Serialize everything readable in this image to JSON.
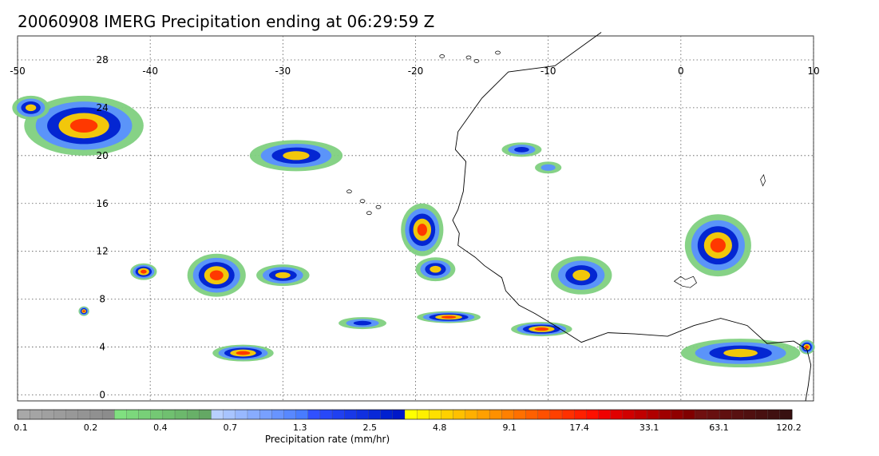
{
  "title": "20060908 IMERG Precipitation ending at 06:29:59 Z",
  "map": {
    "lon_range": [
      -50,
      10
    ],
    "lat_range": [
      -0.5,
      30
    ],
    "lon_ticks": [
      "-50",
      "-40",
      "-30",
      "-20",
      "-10",
      "0",
      "10"
    ],
    "lat_ticks": [
      "0",
      "4",
      "8",
      "12",
      "16",
      "20",
      "24",
      "28"
    ],
    "gridlines": true
  },
  "colorbar": {
    "title": "Precipitation rate (mm/hr)",
    "tick_labels": [
      "0.1",
      "0.2",
      "0.4",
      "0.7",
      "1.3",
      "2.5",
      "4.8",
      "9.1",
      "17.4",
      "33.1",
      "63.1",
      "120.2"
    ],
    "colors": [
      "#a8a8a8",
      "#a4a4a4",
      "#a0a0a0",
      "#9c9c9c",
      "#989898",
      "#949494",
      "#909090",
      "#8c8c8c",
      "#80e080",
      "#7cd87c",
      "#78d078",
      "#74c874",
      "#70c070",
      "#6cb86c",
      "#68b068",
      "#64a864",
      "#b8d0ff",
      "#a8c4ff",
      "#98b8ff",
      "#88acff",
      "#78a0ff",
      "#6894ff",
      "#5888ff",
      "#487cff",
      "#3050ff",
      "#2848f8",
      "#2040f0",
      "#1838e8",
      "#1030e0",
      "#0828d8",
      "#0020d0",
      "#0018c8",
      "#ffff00",
      "#fff000",
      "#ffe000",
      "#ffd000",
      "#ffc000",
      "#ffb000",
      "#ffa000",
      "#ff9000",
      "#ff8000",
      "#ff7000",
      "#ff6000",
      "#ff5000",
      "#ff4000",
      "#ff3000",
      "#ff2000",
      "#ff1000",
      "#f00000",
      "#e00000",
      "#d00000",
      "#c00000",
      "#b00000",
      "#a00000",
      "#900000",
      "#800000",
      "#701010",
      "#681010",
      "#601010",
      "#581010",
      "#501010",
      "#481010",
      "#401010",
      "#381010"
    ]
  },
  "precip_cells": [
    {
      "lon": -45,
      "lat": 22.5,
      "rx": 4.5,
      "ry": 2.5,
      "level": 4
    },
    {
      "lon": -49,
      "lat": 24.0,
      "rx": 1.4,
      "ry": 1.0,
      "level": 3
    },
    {
      "lon": -35,
      "lat": 10.0,
      "rx": 2.2,
      "ry": 1.8,
      "level": 4
    },
    {
      "lon": -40.5,
      "lat": 10.3,
      "rx": 1.0,
      "ry": 0.7,
      "level": 4
    },
    {
      "lon": -30,
      "lat": 10.0,
      "rx": 2.0,
      "ry": 0.9,
      "level": 3
    },
    {
      "lon": -33,
      "lat": 3.5,
      "rx": 2.3,
      "ry": 0.7,
      "level": 4
    },
    {
      "lon": -19.5,
      "lat": 13.8,
      "rx": 1.6,
      "ry": 2.2,
      "level": 4
    },
    {
      "lon": -18.5,
      "lat": 10.5,
      "rx": 1.5,
      "ry": 1.0,
      "level": 3
    },
    {
      "lon": -17.5,
      "lat": 6.5,
      "rx": 2.4,
      "ry": 0.5,
      "level": 4
    },
    {
      "lon": -10.5,
      "lat": 5.5,
      "rx": 2.3,
      "ry": 0.6,
      "level": 4
    },
    {
      "lon": -7.5,
      "lat": 10.0,
      "rx": 2.3,
      "ry": 1.6,
      "level": 3
    },
    {
      "lon": 2.8,
      "lat": 12.5,
      "rx": 2.5,
      "ry": 2.6,
      "level": 4
    },
    {
      "lon": 4.5,
      "lat": 3.5,
      "rx": 4.5,
      "ry": 1.2,
      "level": 3
    },
    {
      "lon": 9.5,
      "lat": 4.0,
      "rx": 0.6,
      "ry": 0.6,
      "level": 4
    },
    {
      "lon": -29,
      "lat": 20.0,
      "rx": 3.5,
      "ry": 1.3,
      "level": 3
    },
    {
      "lon": -12,
      "lat": 20.5,
      "rx": 1.5,
      "ry": 0.6,
      "level": 2
    },
    {
      "lon": -45,
      "lat": 7.0,
      "rx": 0.4,
      "ry": 0.4,
      "level": 4
    },
    {
      "lon": -24,
      "lat": 6.0,
      "rx": 1.8,
      "ry": 0.5,
      "level": 2
    },
    {
      "lon": -10,
      "lat": 19.0,
      "rx": 1.0,
      "ry": 0.5,
      "level": 1
    }
  ]
}
